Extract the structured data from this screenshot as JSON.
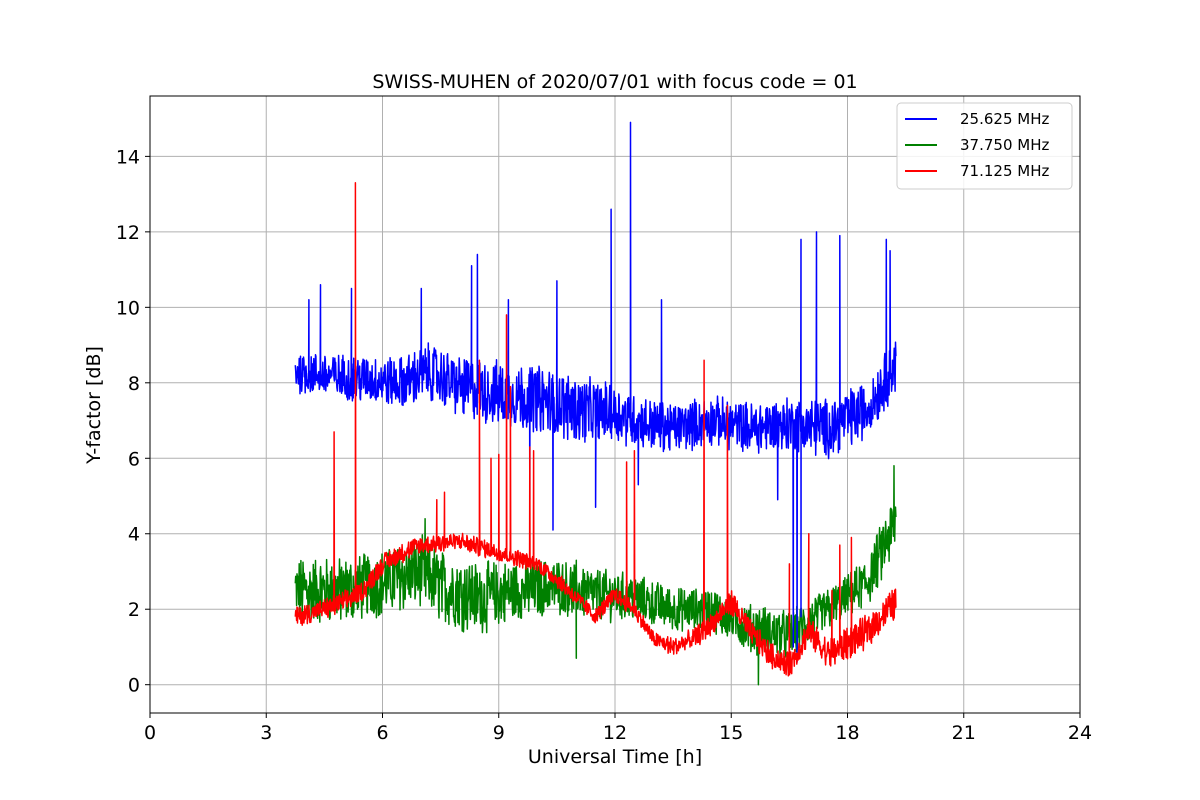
{
  "chart_data": {
    "type": "line",
    "title": "SWISS-MUHEN of 2020/07/01 with focus code = 01",
    "xlabel": "Universal Time [h]",
    "ylabel": "Y-factor [dB]",
    "xlim": [
      0,
      24
    ],
    "ylim": [
      -0.75,
      15.6
    ],
    "x_ticks": [
      0,
      3,
      6,
      9,
      12,
      15,
      18,
      21,
      24
    ],
    "x_tick_labels": [
      "0",
      "3",
      "6",
      "9",
      "12",
      "15",
      "18",
      "21",
      "24"
    ],
    "y_ticks": [
      0,
      2,
      4,
      6,
      8,
      10,
      12,
      14
    ],
    "y_tick_labels": [
      "0",
      "2",
      "4",
      "6",
      "8",
      "10",
      "12",
      "14"
    ],
    "grid": true,
    "legend_position": "top-right",
    "x_start": 3.75,
    "x_end": 19.25,
    "series": [
      {
        "name": "25.625 MHz",
        "color": "#0000ff",
        "baseline": [
          [
            3.75,
            8.3
          ],
          [
            4.5,
            8.2
          ],
          [
            5.5,
            8.1
          ],
          [
            6.5,
            8.0
          ],
          [
            7.2,
            8.3
          ],
          [
            8.0,
            7.9
          ],
          [
            9.0,
            7.7
          ],
          [
            10.0,
            7.6
          ],
          [
            11.0,
            7.3
          ],
          [
            12.0,
            7.2
          ],
          [
            12.5,
            7.0
          ],
          [
            13.5,
            6.8
          ],
          [
            14.5,
            7.0
          ],
          [
            15.5,
            6.8
          ],
          [
            16.5,
            6.9
          ],
          [
            17.5,
            6.8
          ],
          [
            18.5,
            7.3
          ],
          [
            19.25,
            8.5
          ]
        ],
        "noise": [
          [
            3.75,
            0.5
          ],
          [
            6.0,
            0.6
          ],
          [
            7.5,
            0.7
          ],
          [
            9.0,
            0.8
          ],
          [
            11.0,
            0.8
          ],
          [
            13.0,
            0.6
          ],
          [
            15.0,
            0.6
          ],
          [
            17.0,
            0.7
          ],
          [
            19.25,
            0.7
          ]
        ],
        "spikes": [
          [
            4.1,
            10.2
          ],
          [
            4.4,
            10.6
          ],
          [
            5.2,
            10.5
          ],
          [
            7.0,
            10.5
          ],
          [
            8.3,
            11.1
          ],
          [
            8.45,
            11.4
          ],
          [
            9.25,
            10.2
          ],
          [
            10.5,
            10.7
          ],
          [
            11.9,
            12.6
          ],
          [
            12.4,
            14.9
          ],
          [
            13.2,
            10.2
          ],
          [
            16.8,
            11.8
          ],
          [
            17.2,
            12.0
          ],
          [
            17.8,
            11.9
          ],
          [
            19.0,
            11.8
          ],
          [
            19.1,
            11.5
          ],
          [
            9.8,
            4.9
          ],
          [
            10.4,
            4.1
          ],
          [
            11.5,
            4.7
          ],
          [
            12.6,
            5.3
          ],
          [
            16.2,
            4.9
          ],
          [
            16.6,
            1.0
          ],
          [
            16.7,
            0.6
          ],
          [
            16.8,
            1.8
          ]
        ],
        "values": [
          8.3,
          8.2,
          8.1,
          8.0,
          8.3,
          7.9,
          7.7,
          7.6,
          7.3,
          7.2,
          7.0,
          6.8,
          7.0,
          6.8,
          6.9,
          6.8,
          7.3,
          8.5
        ]
      },
      {
        "name": "37.750 MHz",
        "color": "#008000",
        "baseline": [
          [
            3.75,
            2.5
          ],
          [
            5.0,
            2.5
          ],
          [
            6.0,
            2.7
          ],
          [
            7.0,
            3.0
          ],
          [
            7.5,
            2.6
          ],
          [
            8.5,
            2.3
          ],
          [
            9.5,
            2.5
          ],
          [
            10.5,
            2.6
          ],
          [
            11.5,
            2.4
          ],
          [
            12.5,
            2.3
          ],
          [
            13.5,
            2.0
          ],
          [
            14.5,
            2.0
          ],
          [
            15.5,
            1.5
          ],
          [
            16.5,
            1.3
          ],
          [
            17.5,
            2.0
          ],
          [
            18.5,
            2.7
          ],
          [
            19.25,
            4.3
          ]
        ],
        "noise": [
          [
            3.75,
            0.8
          ],
          [
            6.0,
            0.8
          ],
          [
            8.0,
            0.9
          ],
          [
            10.0,
            0.7
          ],
          [
            12.0,
            0.6
          ],
          [
            14.0,
            0.5
          ],
          [
            16.0,
            0.6
          ],
          [
            18.0,
            0.5
          ],
          [
            19.25,
            0.8
          ]
        ],
        "spikes": [
          [
            7.1,
            4.4
          ],
          [
            11.0,
            0.7
          ],
          [
            11.0,
            3.3
          ],
          [
            15.7,
            0.0
          ],
          [
            19.2,
            5.8
          ]
        ],
        "values": [
          2.5,
          2.5,
          2.7,
          3.0,
          2.6,
          2.3,
          2.5,
          2.6,
          2.4,
          2.3,
          2.0,
          2.0,
          1.5,
          1.3,
          2.0,
          2.7,
          4.3
        ]
      },
      {
        "name": "71.125 MHz",
        "color": "#ff0000",
        "baseline": [
          [
            3.75,
            1.8
          ],
          [
            4.5,
            2.0
          ],
          [
            5.0,
            2.2
          ],
          [
            5.5,
            2.5
          ],
          [
            6.0,
            3.2
          ],
          [
            6.5,
            3.5
          ],
          [
            7.0,
            3.7
          ],
          [
            8.0,
            3.8
          ],
          [
            9.0,
            3.5
          ],
          [
            10.0,
            3.2
          ],
          [
            10.5,
            2.8
          ],
          [
            11.0,
            2.3
          ],
          [
            11.5,
            1.8
          ],
          [
            12.0,
            2.4
          ],
          [
            12.5,
            2.0
          ],
          [
            13.0,
            1.2
          ],
          [
            13.5,
            1.0
          ],
          [
            14.0,
            1.2
          ],
          [
            14.5,
            1.6
          ],
          [
            15.0,
            2.2
          ],
          [
            15.5,
            1.4
          ],
          [
            16.0,
            0.8
          ],
          [
            16.5,
            0.5
          ],
          [
            17.0,
            1.4
          ],
          [
            17.5,
            0.8
          ],
          [
            18.0,
            1.1
          ],
          [
            18.5,
            1.4
          ],
          [
            19.25,
            2.2
          ]
        ],
        "noise": [
          [
            3.75,
            0.25
          ],
          [
            6.0,
            0.25
          ],
          [
            10.0,
            0.2
          ],
          [
            13.0,
            0.2
          ],
          [
            15.0,
            0.3
          ],
          [
            16.5,
            0.3
          ],
          [
            17.5,
            0.4
          ],
          [
            19.25,
            0.4
          ]
        ],
        "spikes": [
          [
            4.75,
            6.7
          ],
          [
            5.3,
            13.3
          ],
          [
            7.4,
            4.9
          ],
          [
            7.6,
            5.1
          ],
          [
            8.5,
            8.6
          ],
          [
            8.8,
            6.0
          ],
          [
            9.0,
            6.1
          ],
          [
            9.2,
            9.8
          ],
          [
            9.3,
            7.9
          ],
          [
            9.8,
            6.3
          ],
          [
            9.9,
            6.2
          ],
          [
            12.3,
            5.9
          ],
          [
            12.5,
            6.2
          ],
          [
            14.3,
            8.6
          ],
          [
            14.9,
            7.4
          ],
          [
            16.5,
            3.2
          ],
          [
            17.0,
            4.0
          ],
          [
            17.6,
            2.5
          ],
          [
            17.8,
            3.7
          ],
          [
            18.1,
            3.9
          ]
        ],
        "values": [
          1.8,
          2.0,
          2.2,
          2.5,
          3.2,
          3.5,
          3.7,
          3.8,
          3.5,
          3.2,
          2.8,
          2.3,
          1.8,
          2.4,
          2.0,
          1.2,
          1.0,
          1.2,
          1.6,
          2.2,
          1.4,
          0.8,
          0.5,
          1.4,
          0.8,
          1.1,
          1.4,
          2.2
        ]
      }
    ]
  }
}
